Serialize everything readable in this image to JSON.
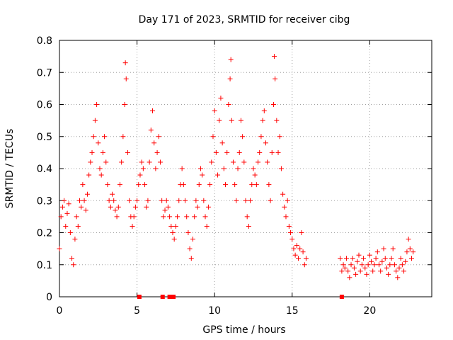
{
  "chart_data": {
    "type": "scatter",
    "title": "Day 171 of 2023, SRMTID for receiver cibg",
    "xlabel": "GPS time / hours",
    "ylabel": "SRMTID / TECUs",
    "xlim": [
      0,
      24
    ],
    "ylim": [
      0,
      0.8
    ],
    "xticks": [
      0,
      5,
      10,
      15,
      20
    ],
    "xtick_labels": [
      "0",
      "5",
      "10",
      "15",
      "20"
    ],
    "yticks": [
      0,
      0.1,
      0.2,
      0.3,
      0.4,
      0.5,
      0.6,
      0.7,
      0.8
    ],
    "ytick_labels": [
      "0",
      "0.1",
      "0.2",
      "0.3",
      "0.4",
      "0.5",
      "0.6",
      "0.7",
      "0.8"
    ],
    "grid": true,
    "marker": "plus",
    "color": "#ff0000",
    "series": [
      {
        "name": "SRMTID",
        "points": [
          [
            0.0,
            0.15
          ],
          [
            0.1,
            0.25
          ],
          [
            0.2,
            0.28
          ],
          [
            0.3,
            0.3
          ],
          [
            0.4,
            0.22
          ],
          [
            0.5,
            0.26
          ],
          [
            0.6,
            0.29
          ],
          [
            0.7,
            0.2
          ],
          [
            0.8,
            0.12
          ],
          [
            0.9,
            0.1
          ],
          [
            1.0,
            0.18
          ],
          [
            1.1,
            0.25
          ],
          [
            1.2,
            0.22
          ],
          [
            1.3,
            0.3
          ],
          [
            1.4,
            0.28
          ],
          [
            1.5,
            0.35
          ],
          [
            1.6,
            0.3
          ],
          [
            1.7,
            0.27
          ],
          [
            1.8,
            0.32
          ],
          [
            1.9,
            0.38
          ],
          [
            2.0,
            0.42
          ],
          [
            2.1,
            0.45
          ],
          [
            2.2,
            0.5
          ],
          [
            2.3,
            0.55
          ],
          [
            2.4,
            0.6
          ],
          [
            2.5,
            0.48
          ],
          [
            2.6,
            0.4
          ],
          [
            2.7,
            0.38
          ],
          [
            2.8,
            0.45
          ],
          [
            2.9,
            0.5
          ],
          [
            3.0,
            0.42
          ],
          [
            3.1,
            0.35
          ],
          [
            3.2,
            0.3
          ],
          [
            3.3,
            0.28
          ],
          [
            3.4,
            0.32
          ],
          [
            3.5,
            0.3
          ],
          [
            3.6,
            0.27
          ],
          [
            3.7,
            0.25
          ],
          [
            3.8,
            0.28
          ],
          [
            3.9,
            0.35
          ],
          [
            4.0,
            0.42
          ],
          [
            4.1,
            0.5
          ],
          [
            4.2,
            0.6
          ],
          [
            4.25,
            0.73
          ],
          [
            4.3,
            0.68
          ],
          [
            4.4,
            0.45
          ],
          [
            4.5,
            0.3
          ],
          [
            4.6,
            0.25
          ],
          [
            4.7,
            0.22
          ],
          [
            4.8,
            0.25
          ],
          [
            4.9,
            0.28
          ],
          [
            5.0,
            0.3
          ],
          [
            5.1,
            0.35
          ],
          [
            5.2,
            0.38
          ],
          [
            5.3,
            0.42
          ],
          [
            5.4,
            0.4
          ],
          [
            5.5,
            0.35
          ],
          [
            5.6,
            0.28
          ],
          [
            5.7,
            0.3
          ],
          [
            5.8,
            0.42
          ],
          [
            5.9,
            0.52
          ],
          [
            6.0,
            0.58
          ],
          [
            6.1,
            0.48
          ],
          [
            6.2,
            0.4
          ],
          [
            6.3,
            0.45
          ],
          [
            6.4,
            0.5
          ],
          [
            6.5,
            0.42
          ],
          [
            6.6,
            0.3
          ],
          [
            6.7,
            0.25
          ],
          [
            6.8,
            0.27
          ],
          [
            6.9,
            0.3
          ],
          [
            7.0,
            0.28
          ],
          [
            7.1,
            0.25
          ],
          [
            7.2,
            0.22
          ],
          [
            7.3,
            0.2
          ],
          [
            7.4,
            0.18
          ],
          [
            7.5,
            0.22
          ],
          [
            7.6,
            0.25
          ],
          [
            7.7,
            0.3
          ],
          [
            7.8,
            0.35
          ],
          [
            7.9,
            0.4
          ],
          [
            8.0,
            0.35
          ],
          [
            8.1,
            0.3
          ],
          [
            8.2,
            0.25
          ],
          [
            8.3,
            0.2
          ],
          [
            8.4,
            0.15
          ],
          [
            8.5,
            0.12
          ],
          [
            8.6,
            0.18
          ],
          [
            8.7,
            0.25
          ],
          [
            8.8,
            0.3
          ],
          [
            8.9,
            0.28
          ],
          [
            9.0,
            0.35
          ],
          [
            9.1,
            0.4
          ],
          [
            9.2,
            0.38
          ],
          [
            9.3,
            0.3
          ],
          [
            9.4,
            0.25
          ],
          [
            9.5,
            0.22
          ],
          [
            9.6,
            0.28
          ],
          [
            9.7,
            0.35
          ],
          [
            9.8,
            0.42
          ],
          [
            9.9,
            0.5
          ],
          [
            10.0,
            0.58
          ],
          [
            10.1,
            0.45
          ],
          [
            10.2,
            0.38
          ],
          [
            10.3,
            0.55
          ],
          [
            10.4,
            0.62
          ],
          [
            10.5,
            0.48
          ],
          [
            10.6,
            0.4
          ],
          [
            10.7,
            0.35
          ],
          [
            10.8,
            0.45
          ],
          [
            10.9,
            0.6
          ],
          [
            11.0,
            0.68
          ],
          [
            11.05,
            0.74
          ],
          [
            11.1,
            0.55
          ],
          [
            11.2,
            0.42
          ],
          [
            11.3,
            0.35
          ],
          [
            11.4,
            0.3
          ],
          [
            11.5,
            0.4
          ],
          [
            11.6,
            0.45
          ],
          [
            11.7,
            0.55
          ],
          [
            11.8,
            0.5
          ],
          [
            11.9,
            0.42
          ],
          [
            12.0,
            0.3
          ],
          [
            12.1,
            0.25
          ],
          [
            12.2,
            0.22
          ],
          [
            12.3,
            0.3
          ],
          [
            12.4,
            0.35
          ],
          [
            12.5,
            0.4
          ],
          [
            12.6,
            0.38
          ],
          [
            12.7,
            0.35
          ],
          [
            12.8,
            0.42
          ],
          [
            12.9,
            0.45
          ],
          [
            13.0,
            0.5
          ],
          [
            13.1,
            0.55
          ],
          [
            13.2,
            0.58
          ],
          [
            13.3,
            0.48
          ],
          [
            13.4,
            0.42
          ],
          [
            13.5,
            0.35
          ],
          [
            13.6,
            0.3
          ],
          [
            13.7,
            0.45
          ],
          [
            13.8,
            0.6
          ],
          [
            13.85,
            0.75
          ],
          [
            13.9,
            0.68
          ],
          [
            14.0,
            0.55
          ],
          [
            14.1,
            0.45
          ],
          [
            14.2,
            0.5
          ],
          [
            14.3,
            0.4
          ],
          [
            14.4,
            0.32
          ],
          [
            14.5,
            0.28
          ],
          [
            14.6,
            0.25
          ],
          [
            14.7,
            0.3
          ],
          [
            14.8,
            0.22
          ],
          [
            14.9,
            0.2
          ],
          [
            15.0,
            0.18
          ],
          [
            15.1,
            0.15
          ],
          [
            15.2,
            0.13
          ],
          [
            15.3,
            0.16
          ],
          [
            15.4,
            0.12
          ],
          [
            15.5,
            0.15
          ],
          [
            15.6,
            0.2
          ],
          [
            15.7,
            0.14
          ],
          [
            15.8,
            0.1
          ],
          [
            15.9,
            0.12
          ],
          [
            18.1,
            0.12
          ],
          [
            18.2,
            0.08
          ],
          [
            18.3,
            0.1
          ],
          [
            18.4,
            0.09
          ],
          [
            18.5,
            0.12
          ],
          [
            18.6,
            0.08
          ],
          [
            18.7,
            0.06
          ],
          [
            18.8,
            0.1
          ],
          [
            18.9,
            0.12
          ],
          [
            19.0,
            0.09
          ],
          [
            19.1,
            0.07
          ],
          [
            19.2,
            0.11
          ],
          [
            19.3,
            0.13
          ],
          [
            19.4,
            0.08
          ],
          [
            19.5,
            0.1
          ],
          [
            19.6,
            0.12
          ],
          [
            19.7,
            0.09
          ],
          [
            19.8,
            0.07
          ],
          [
            19.9,
            0.1
          ],
          [
            20.0,
            0.13
          ],
          [
            20.1,
            0.11
          ],
          [
            20.2,
            0.08
          ],
          [
            20.3,
            0.1
          ],
          [
            20.4,
            0.12
          ],
          [
            20.5,
            0.14
          ],
          [
            20.6,
            0.1
          ],
          [
            20.7,
            0.08
          ],
          [
            20.8,
            0.11
          ],
          [
            20.9,
            0.15
          ],
          [
            21.0,
            0.12
          ],
          [
            21.1,
            0.09
          ],
          [
            21.2,
            0.07
          ],
          [
            21.3,
            0.1
          ],
          [
            21.4,
            0.12
          ],
          [
            21.5,
            0.15
          ],
          [
            21.6,
            0.1
          ],
          [
            21.7,
            0.08
          ],
          [
            21.8,
            0.06
          ],
          [
            21.9,
            0.09
          ],
          [
            22.0,
            0.12
          ],
          [
            22.1,
            0.1
          ],
          [
            22.2,
            0.08
          ],
          [
            22.3,
            0.11
          ],
          [
            22.4,
            0.14
          ],
          [
            22.5,
            0.18
          ],
          [
            22.6,
            0.15
          ],
          [
            22.7,
            0.12
          ],
          [
            22.8,
            0.14
          ]
        ]
      }
    ],
    "markers_on_axis": [
      {
        "x": 5.15,
        "y": 0
      },
      {
        "x": 6.65,
        "y": 0
      },
      {
        "x": 7.1,
        "y": 0
      },
      {
        "x": 7.35,
        "y": 0
      },
      {
        "x": 18.2,
        "y": 0
      }
    ]
  }
}
